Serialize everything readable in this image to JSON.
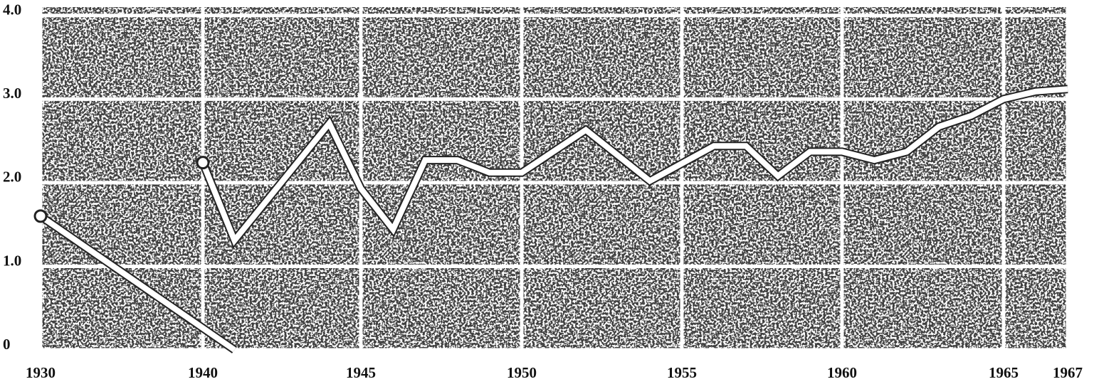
{
  "chart_data": {
    "type": "line",
    "x": [
      1940,
      1941,
      1944,
      1945,
      1946,
      1947,
      1948,
      1949,
      1950,
      1952,
      1954,
      1956,
      1957,
      1958,
      1959,
      1960,
      1961,
      1962,
      1963,
      1964,
      1965,
      1966,
      1967
    ],
    "series": [
      {
        "color": "#ffffff",
        "values": [
          2.24,
          1.31,
          2.71,
          1.93,
          1.44,
          2.27,
          2.27,
          2.12,
          2.12,
          2.63,
          2.02,
          2.44,
          2.44,
          2.08,
          2.37,
          2.37,
          2.27,
          2.37,
          2.67,
          2.8,
          3.0,
          3.09,
          3.12
        ]
      },
      {
        "color": "#ffffff",
        "x": [
          1930,
          1941
        ],
        "values": [
          1.6,
          0
        ]
      }
    ],
    "xlim": [
      1930,
      1967
    ],
    "xticks": [
      1930,
      1940,
      1945,
      1950,
      1955,
      1960,
      1965,
      1967
    ],
    "ylim": [
      0,
      4.1
    ],
    "yticks": [
      0,
      {
        "value": 1,
        "label": "1.0"
      },
      {
        "value": 2,
        "label": "2.0"
      },
      {
        "value": 3,
        "label": "3.0"
      },
      {
        "value": 4,
        "label": "4.0"
      }
    ],
    "grid": true
  }
}
